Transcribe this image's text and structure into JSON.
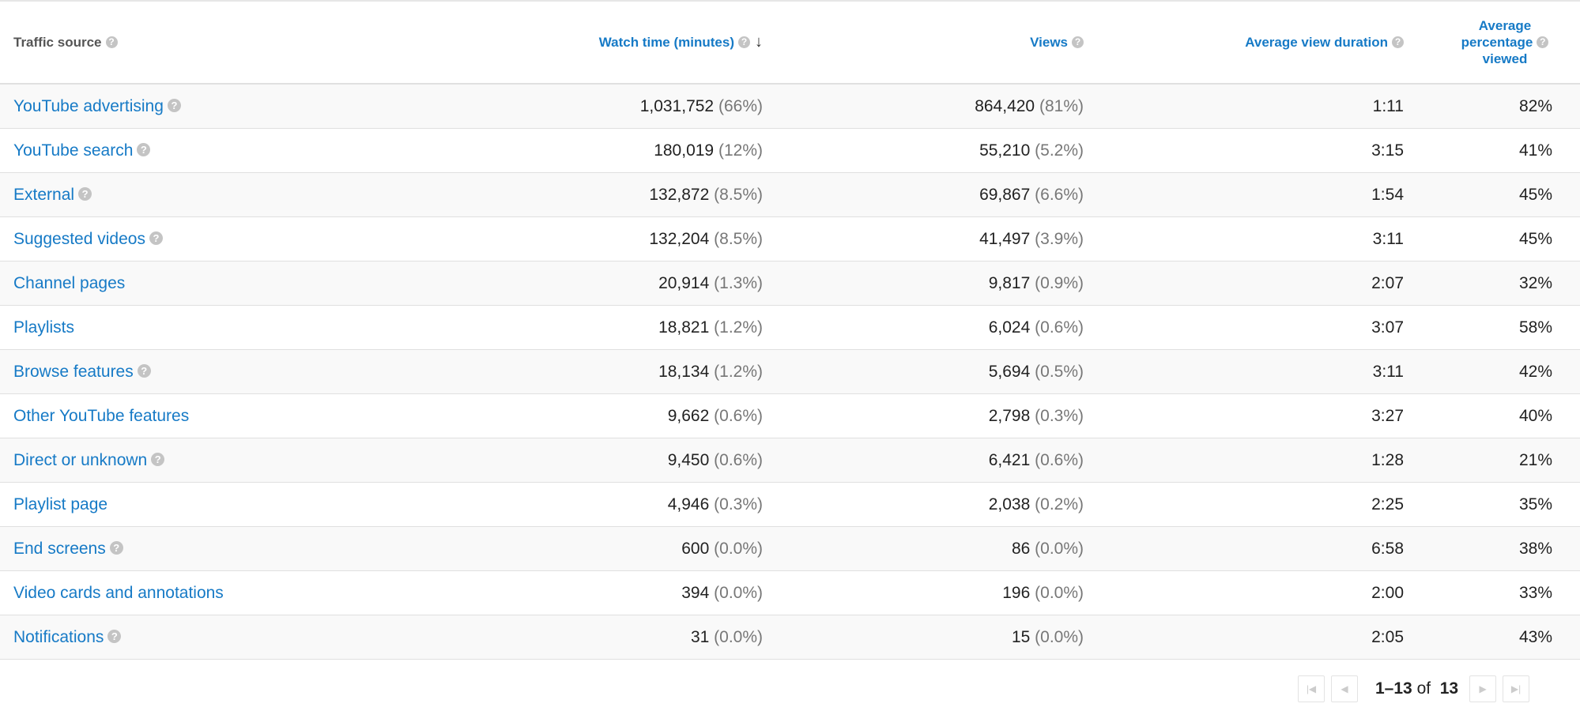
{
  "table": {
    "headers": {
      "source": "Traffic source",
      "watch_time": "Watch time (minutes)",
      "views": "Views",
      "avg_duration": "Average view duration",
      "avg_pct_1": "Average",
      "avg_pct_2": "percentage",
      "avg_pct_3": "viewed"
    },
    "sort": {
      "column": "watch_time",
      "direction": "descending",
      "icon": "arrow-down-icon"
    },
    "rows": [
      {
        "source": "YouTube advertising",
        "help": true,
        "watch": "1,031,752",
        "watch_pct": "(66%)",
        "views": "864,420",
        "views_pct": "(81%)",
        "duration": "1:11",
        "pct_viewed": "82%"
      },
      {
        "source": "YouTube search",
        "help": true,
        "watch": "180,019",
        "watch_pct": "(12%)",
        "views": "55,210",
        "views_pct": "(5.2%)",
        "duration": "3:15",
        "pct_viewed": "41%"
      },
      {
        "source": "External",
        "help": true,
        "watch": "132,872",
        "watch_pct": "(8.5%)",
        "views": "69,867",
        "views_pct": "(6.6%)",
        "duration": "1:54",
        "pct_viewed": "45%"
      },
      {
        "source": "Suggested videos",
        "help": true,
        "watch": "132,204",
        "watch_pct": "(8.5%)",
        "views": "41,497",
        "views_pct": "(3.9%)",
        "duration": "3:11",
        "pct_viewed": "45%"
      },
      {
        "source": "Channel pages",
        "help": false,
        "watch": "20,914",
        "watch_pct": "(1.3%)",
        "views": "9,817",
        "views_pct": "(0.9%)",
        "duration": "2:07",
        "pct_viewed": "32%"
      },
      {
        "source": "Playlists",
        "help": false,
        "watch": "18,821",
        "watch_pct": "(1.2%)",
        "views": "6,024",
        "views_pct": "(0.6%)",
        "duration": "3:07",
        "pct_viewed": "58%"
      },
      {
        "source": "Browse features",
        "help": true,
        "watch": "18,134",
        "watch_pct": "(1.2%)",
        "views": "5,694",
        "views_pct": "(0.5%)",
        "duration": "3:11",
        "pct_viewed": "42%"
      },
      {
        "source": "Other YouTube features",
        "help": false,
        "watch": "9,662",
        "watch_pct": "(0.6%)",
        "views": "2,798",
        "views_pct": "(0.3%)",
        "duration": "3:27",
        "pct_viewed": "40%"
      },
      {
        "source": "Direct or unknown",
        "help": true,
        "watch": "9,450",
        "watch_pct": "(0.6%)",
        "views": "6,421",
        "views_pct": "(0.6%)",
        "duration": "1:28",
        "pct_viewed": "21%"
      },
      {
        "source": "Playlist page",
        "help": false,
        "watch": "4,946",
        "watch_pct": "(0.3%)",
        "views": "2,038",
        "views_pct": "(0.2%)",
        "duration": "2:25",
        "pct_viewed": "35%"
      },
      {
        "source": "End screens",
        "help": true,
        "watch": "600",
        "watch_pct": "(0.0%)",
        "views": "86",
        "views_pct": "(0.0%)",
        "duration": "6:58",
        "pct_viewed": "38%"
      },
      {
        "source": "Video cards and annotations",
        "help": false,
        "watch": "394",
        "watch_pct": "(0.0%)",
        "views": "196",
        "views_pct": "(0.0%)",
        "duration": "2:00",
        "pct_viewed": "33%"
      },
      {
        "source": "Notifications",
        "help": true,
        "watch": "31",
        "watch_pct": "(0.0%)",
        "views": "15",
        "views_pct": "(0.0%)",
        "duration": "2:05",
        "pct_viewed": "43%"
      }
    ]
  },
  "pagination": {
    "range": "1–13",
    "of_label": "of",
    "total": "13"
  },
  "colors": {
    "link": "#167ac6",
    "header_gray": "#555555",
    "pct_gray": "#777777",
    "row_alt": "#f9f9f9",
    "border": "#e0e0e0"
  }
}
